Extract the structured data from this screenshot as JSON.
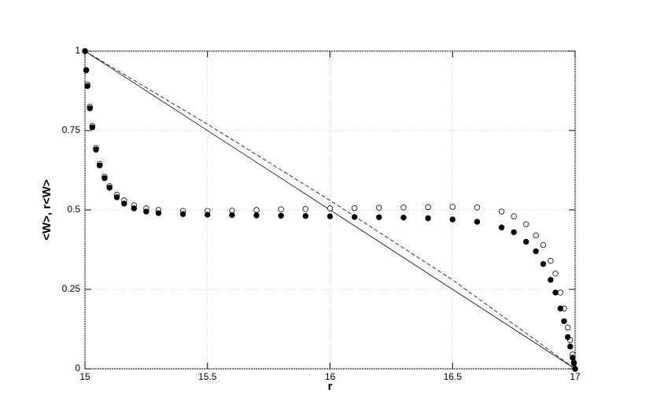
{
  "chart_data": {
    "type": "line",
    "xlabel": "r",
    "ylabel": "<W>, r<W>",
    "xlim": [
      15,
      17
    ],
    "ylim": [
      0,
      1
    ],
    "xticks": [
      15,
      15.5,
      16,
      16.5,
      17
    ],
    "yticks": [
      0,
      0.25,
      0.5,
      0.75,
      1
    ],
    "grid": true,
    "series": [
      {
        "color": "#000000",
        "line": "solid",
        "marker": "none",
        "x": [
          15,
          17
        ],
        "values": [
          1,
          0
        ]
      },
      {
        "color": "#000000",
        "line": "dashed",
        "marker": "none",
        "x": [
          15,
          15.5,
          16,
          16.5,
          17
        ],
        "values": [
          1,
          0.77,
          0.53,
          0.28,
          0
        ]
      },
      {
        "color": "#000000",
        "line": "none",
        "marker": "open",
        "x": [
          15,
          15.005,
          15.01,
          15.02,
          15.03,
          15.045,
          15.06,
          15.08,
          15.1,
          15.13,
          15.16,
          15.2,
          15.25,
          15.3,
          15.4,
          15.5,
          15.6,
          15.7,
          15.8,
          15.9,
          16,
          16.1,
          16.2,
          16.3,
          16.4,
          16.5,
          16.6,
          16.7,
          16.75,
          16.8,
          16.84,
          16.87,
          16.9,
          16.92,
          16.94,
          16.955,
          16.97,
          16.98,
          16.99,
          16.995,
          17
        ],
        "values": [
          1,
          0.94,
          0.895,
          0.825,
          0.765,
          0.695,
          0.645,
          0.605,
          0.575,
          0.548,
          0.53,
          0.515,
          0.505,
          0.5,
          0.497,
          0.497,
          0.498,
          0.5,
          0.502,
          0.503,
          0.505,
          0.506,
          0.507,
          0.508,
          0.509,
          0.51,
          0.508,
          0.495,
          0.48,
          0.455,
          0.42,
          0.39,
          0.34,
          0.3,
          0.24,
          0.19,
          0.13,
          0.09,
          0.045,
          0.02,
          0
        ]
      },
      {
        "color": "#000000",
        "line": "none",
        "marker": "filled",
        "x": [
          15,
          15.005,
          15.01,
          15.02,
          15.03,
          15.045,
          15.06,
          15.08,
          15.1,
          15.13,
          15.16,
          15.2,
          15.25,
          15.3,
          15.4,
          15.5,
          15.6,
          15.7,
          15.8,
          15.9,
          16,
          16.1,
          16.2,
          16.3,
          16.4,
          16.5,
          16.6,
          16.7,
          16.75,
          16.8,
          16.84,
          16.87,
          16.9,
          16.92,
          16.94,
          16.955,
          16.97,
          16.98,
          16.99,
          16.995,
          17
        ],
        "values": [
          1,
          0.94,
          0.89,
          0.82,
          0.76,
          0.69,
          0.64,
          0.6,
          0.57,
          0.54,
          0.52,
          0.505,
          0.495,
          0.49,
          0.487,
          0.485,
          0.484,
          0.483,
          0.482,
          0.481,
          0.48,
          0.478,
          0.477,
          0.476,
          0.474,
          0.47,
          0.463,
          0.445,
          0.43,
          0.4,
          0.37,
          0.33,
          0.28,
          0.24,
          0.19,
          0.15,
          0.1,
          0.07,
          0.035,
          0.017,
          0
        ]
      }
    ]
  }
}
